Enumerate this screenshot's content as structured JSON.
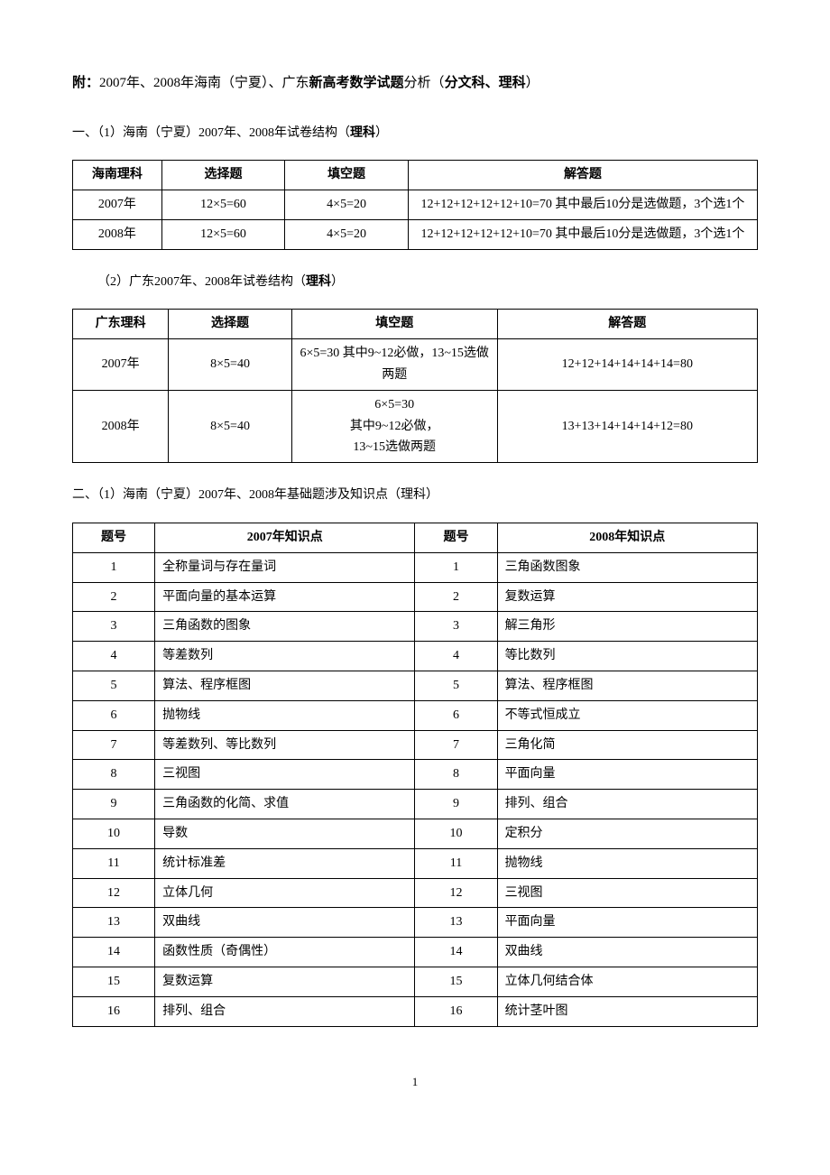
{
  "title": {
    "prefix": "附：",
    "part1": "2007年、2008年海南（宁夏）、广东",
    "bold1": "新高考数学试题",
    "part2": "分析（",
    "bold2": "分文科、理科",
    "part3": "）"
  },
  "section1_1": {
    "heading_prefix": "一、（1）海南（宁夏）2007年、2008年试卷结构（",
    "heading_bold": "理科",
    "heading_suffix": "）"
  },
  "table1": {
    "headers": [
      "海南理科",
      "选择题",
      "填空题",
      "解答题"
    ],
    "rows": [
      [
        "2007年",
        "12×5=60",
        "4×5=20",
        "12+12+12+12+12+10=70 其中最后10分是选做题，3个选1个"
      ],
      [
        "2008年",
        "12×5=60",
        "4×5=20",
        "12+12+12+12+12+10=70 其中最后10分是选做题，3个选1个"
      ]
    ]
  },
  "section1_2": {
    "heading_prefix": "（2）广东2007年、2008年试卷结构（",
    "heading_bold": "理科",
    "heading_suffix": "）"
  },
  "table2": {
    "headers": [
      "广东理科",
      "选择题",
      "填空题",
      "解答题"
    ],
    "rows": [
      [
        "2007年",
        "8×5=40",
        "6×5=30 其中9~12必做，13~15选做两题",
        "12+12+14+14+14+14=80"
      ],
      [
        "2008年",
        "8×5=40",
        "6×5=30\n其中9~12必做，\n13~15选做两题",
        "13+13+14+14+14+12=80"
      ]
    ]
  },
  "section2_1": {
    "heading": "二、（1）海南（宁夏）2007年、2008年基础题涉及知识点（理科）"
  },
  "table3": {
    "headers": [
      "题号",
      "2007年知识点",
      "题号",
      "2008年知识点"
    ],
    "rows": [
      [
        "1",
        "全称量词与存在量词",
        "1",
        "三角函数图象"
      ],
      [
        "2",
        "平面向量的基本运算",
        "2",
        "复数运算"
      ],
      [
        "3",
        "三角函数的图象",
        "3",
        "解三角形"
      ],
      [
        "4",
        "等差数列",
        "4",
        "等比数列"
      ],
      [
        "5",
        "算法、程序框图",
        "5",
        "算法、程序框图"
      ],
      [
        "6",
        "抛物线",
        "6",
        "不等式恒成立"
      ],
      [
        "7",
        "等差数列、等比数列",
        "7",
        "三角化简"
      ],
      [
        "8",
        "三视图",
        "8",
        "平面向量"
      ],
      [
        "9",
        "三角函数的化简、求值",
        "9",
        "排列、组合"
      ],
      [
        "10",
        "导数",
        "10",
        "定积分"
      ],
      [
        "11",
        "统计标准差",
        "11",
        "抛物线"
      ],
      [
        "12",
        "立体几何",
        "12",
        "三视图"
      ],
      [
        "13",
        "双曲线",
        "13",
        "平面向量"
      ],
      [
        "14",
        "函数性质（奇偶性）",
        "14",
        "双曲线"
      ],
      [
        "15",
        "复数运算",
        "15",
        "立体几何结合体"
      ],
      [
        "16",
        "排列、组合",
        "16",
        "统计茎叶图"
      ]
    ]
  },
  "page_number": "1",
  "col_widths": {
    "t1": [
      "13%",
      "18%",
      "18%",
      "51%"
    ],
    "t2": [
      "14%",
      "18%",
      "30%",
      "38%"
    ],
    "t3": [
      "12%",
      "38%",
      "12%",
      "38%"
    ]
  }
}
